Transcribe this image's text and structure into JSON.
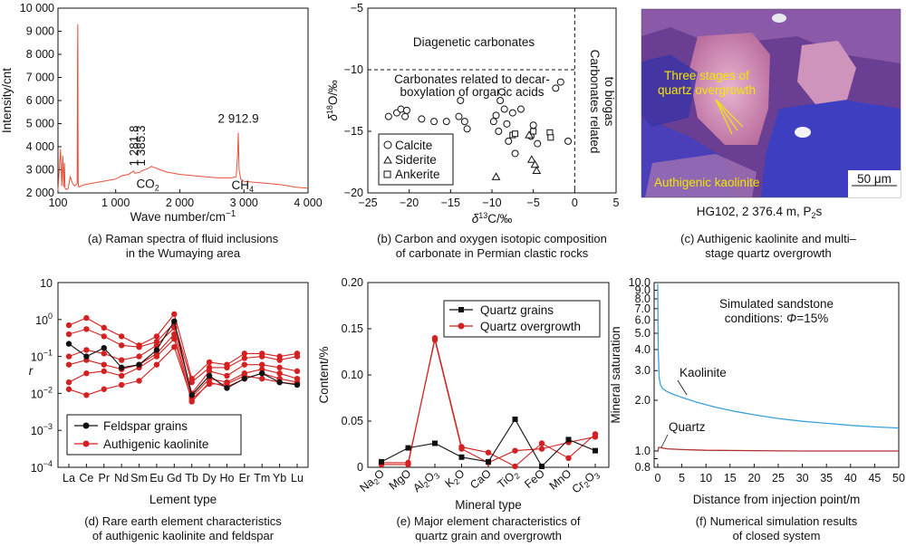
{
  "panels": {
    "a": {
      "caption_line1": "(a) Raman spectra of fluid inclusions",
      "caption_line2": "in the Wumaying area",
      "ylabel": "Intensity/cnt",
      "xlabel_main": "Wave number/cm",
      "xlabel_sup": "−1"
    },
    "b": {
      "caption_line1": "(b) Carbon and oxygen isotopic composition",
      "caption_line2": "of carbonate in Permian clastic rocks",
      "ylabel_delta": "δ",
      "ylabel_sup": "18",
      "ylabel_rest": "O/‰",
      "xlabel_delta": "δ",
      "xlabel_sup": "13",
      "xlabel_rest": "C/‰",
      "region_diagenetic": "Diagenetic carbonates",
      "region_decarb_1": "Carbonates related to decar-",
      "region_decarb_2": "boxylation of organic acids",
      "region_biogas_1": "Carbonates related",
      "region_biogas_2": "to biogas"
    },
    "c": {
      "label_three_1": "Three stages of",
      "label_three_2": "quartz overgrowth",
      "label_kaolinite": "Authigenic kaolinite",
      "scale_bar": "50 μm",
      "sample_main": "HG102, 2 376.4 m, P",
      "sample_sub": "2",
      "sample_tail": "s",
      "caption_line1": "(c) Authigenic kaolinite and multi–",
      "caption_line2": "stage quartz overgrowth"
    },
    "d": {
      "ylabel": "r",
      "xlabel": "Lement type",
      "caption_line1": "(d) Rare earth element characteristics",
      "caption_line2": "of authigenic kaolinite and feldspar"
    },
    "e": {
      "ylabel": "Content/%",
      "xlabel": "Mineral type",
      "caption_line1": "(e) Major element characteristics of",
      "caption_line2": "quartz grain and overgrowth"
    },
    "f": {
      "ylabel": "Mineral saturation",
      "xlabel": "Distance from injection point/m",
      "annot_line1": "Simulated sandstone",
      "annot_line2_prefix": "conditions: ",
      "annot_line2_phi": "Φ",
      "annot_line2_suffix": "=15%",
      "caption_line1": "(f) Numerical simulation results",
      "caption_line2": "of closed system"
    }
  },
  "colors": {
    "raman": "#e8503a",
    "red_series": "#d42020",
    "black_series": "#111111",
    "kaolinite_curve": "#3aa0d8",
    "quartz_curve": "#b03030",
    "photo_label": "#f2e600"
  },
  "chart_data": [
    {
      "id": "a",
      "type": "line",
      "xlim": [
        100,
        4000
      ],
      "ylim": [
        2000,
        10000
      ],
      "xticks": [
        100,
        1000,
        2000,
        3000,
        4000
      ],
      "xtick_labels": [
        "100",
        "1 000",
        "2 000",
        "3 000",
        "4 000"
      ],
      "yticks": [
        2000,
        3000,
        4000,
        5000,
        6000,
        7000,
        8000,
        9000,
        10000
      ],
      "ytick_labels": [
        "2 000",
        "3 000",
        "4 000",
        "5 000",
        "6 000",
        "7 000",
        "8 000",
        "9 000",
        "10 000"
      ],
      "series": [
        {
          "x": [
            100,
            140,
            160,
            175,
            190,
            200,
            210,
            230,
            260,
            290,
            330,
            360,
            380,
            400,
            405,
            410,
            412,
            415,
            420,
            430,
            460,
            500,
            600,
            700,
            800,
            900,
            1000,
            1100,
            1200,
            1281,
            1300,
            1385,
            1400,
            1500,
            1560,
            1600,
            1700,
            1800,
            1900,
            2000,
            2200,
            2400,
            2600,
            2800,
            2880,
            2900,
            2912,
            2925,
            2950,
            3000,
            3200,
            3400,
            3600,
            3800,
            4000
          ],
          "y": [
            2100,
            3900,
            2300,
            3600,
            2250,
            3300,
            2200,
            2150,
            2200,
            2700,
            2400,
            2300,
            2350,
            2400,
            8000,
            9300,
            5000,
            2500,
            2300,
            2250,
            2300,
            2350,
            2400,
            2450,
            2500,
            2550,
            2600,
            2750,
            2800,
            2950,
            2850,
            2900,
            2950,
            3050,
            3150,
            3100,
            3000,
            2900,
            2850,
            2800,
            2750,
            2700,
            2650,
            2650,
            2700,
            3600,
            4600,
            3000,
            2600,
            2500,
            2450,
            2400,
            2350,
            2250,
            2200
          ]
        }
      ],
      "annotations": [
        {
          "x": 1281.8,
          "y": 3000,
          "text": "1 281.8"
        },
        {
          "x": 1385.3,
          "y": 3000,
          "text": "1 385.3"
        },
        {
          "x": 2912.9,
          "y": 4800,
          "text": "2 912.9"
        },
        {
          "x": 1500,
          "y": 2600,
          "text": "CO",
          "sub": "2"
        },
        {
          "x": 2980,
          "y": 2550,
          "text": "CH",
          "sub": "4"
        }
      ]
    },
    {
      "id": "b",
      "type": "scatter",
      "xlim": [
        -25,
        5
      ],
      "ylim": [
        -20,
        -5
      ],
      "xticks": [
        -25,
        -20,
        -15,
        -10,
        -5,
        0,
        5
      ],
      "xtick_labels": [
        "−25",
        "−20",
        "−15",
        "−10",
        "−5",
        "0",
        "5"
      ],
      "yticks": [
        -20,
        -15,
        -10,
        -5
      ],
      "ytick_labels": [
        "−20",
        "−15",
        "−10",
        "−5"
      ],
      "series": [
        {
          "name": "Calcite",
          "marker": "circle",
          "points": [
            [
              -22.5,
              -13.8
            ],
            [
              -21.5,
              -13.5
            ],
            [
              -21,
              -13.2
            ],
            [
              -20.5,
              -13.8
            ],
            [
              -20.3,
              -13.3
            ],
            [
              -18.5,
              -14.0
            ],
            [
              -17,
              -14.2
            ],
            [
              -15.5,
              -14.2
            ],
            [
              -14,
              -13.8
            ],
            [
              -13.8,
              -12.5
            ],
            [
              -13.3,
              -14.2
            ],
            [
              -13,
              -14.8
            ],
            [
              -9.8,
              -14.2
            ],
            [
              -9.5,
              -13.7
            ],
            [
              -9.2,
              -15.0
            ],
            [
              -9,
              -12.5
            ],
            [
              -8.8,
              -11.8
            ],
            [
              -8.5,
              -13.2
            ],
            [
              -8.2,
              -14.4
            ],
            [
              -8,
              -15.8
            ],
            [
              -7.5,
              -13.5
            ],
            [
              -7.2,
              -16.8
            ],
            [
              -6.5,
              -13.2
            ],
            [
              -5.3,
              -15.4
            ],
            [
              -5,
              -14.5
            ],
            [
              -4.5,
              -16.0
            ],
            [
              -2.3,
              -11.5
            ],
            [
              -1.7,
              -11.0
            ],
            [
              -0.8,
              -15.8
            ]
          ]
        },
        {
          "name": "Siderite",
          "marker": "triangle",
          "points": [
            [
              -9.5,
              -18.7
            ],
            [
              -5.5,
              -15.3
            ],
            [
              -5.2,
              -17.3
            ],
            [
              -4.8,
              -17.7
            ],
            [
              -4.6,
              -18.2
            ]
          ]
        },
        {
          "name": "Ankerite",
          "marker": "square",
          "points": [
            [
              -7.5,
              -15.3
            ],
            [
              -7.2,
              -15.2
            ],
            [
              -5,
              -15.0
            ],
            [
              -3,
              -15.1
            ],
            [
              -2.9,
              -15.5
            ]
          ]
        }
      ],
      "reference_lines": {
        "horizontal_y": -10,
        "vertical_x": 0
      }
    },
    {
      "id": "d",
      "type": "line",
      "yscale": "log",
      "ylim": [
        0.0001,
        10
      ],
      "yticks": [
        0.0001,
        0.001,
        0.01,
        0.1,
        1,
        10
      ],
      "categories": [
        "La",
        "Ce",
        "Pr",
        "Nd",
        "Sm",
        "Eu",
        "Gd",
        "Tb",
        "Dy",
        "Ho",
        "Er",
        "Tm",
        "Yb",
        "Lu"
      ],
      "series": [
        {
          "name": "Feldspar grains",
          "color": "black",
          "values": [
            0.22,
            0.1,
            0.17,
            0.05,
            0.06,
            0.15,
            0.9,
            0.009,
            0.03,
            0.014,
            0.025,
            0.035,
            0.02,
            0.017
          ]
        },
        {
          "name": "Authigenic kaolinite",
          "color": "red",
          "values": [
            0.7,
            1.1,
            0.6,
            0.35,
            0.2,
            0.35,
            1.4,
            0.025,
            0.07,
            0.06,
            0.12,
            0.12,
            0.1,
            0.12
          ]
        },
        {
          "name": "Authigenic kaolinite",
          "color": "red",
          "values": [
            0.4,
            0.55,
            0.35,
            0.2,
            0.18,
            0.25,
            0.8,
            0.02,
            0.05,
            0.05,
            0.09,
            0.1,
            0.08,
            0.1
          ]
        },
        {
          "name": "Authigenic kaolinite",
          "color": "red",
          "values": [
            0.1,
            0.15,
            0.12,
            0.08,
            0.1,
            0.2,
            0.6,
            0.01,
            0.04,
            0.03,
            0.06,
            0.06,
            0.05,
            0.04
          ]
        },
        {
          "name": "Authigenic kaolinite",
          "color": "red",
          "values": [
            0.06,
            0.08,
            0.06,
            0.045,
            0.06,
            0.12,
            0.4,
            0.008,
            0.025,
            0.02,
            0.035,
            0.045,
            0.035,
            0.025
          ]
        },
        {
          "name": "Authigenic kaolinite",
          "color": "red",
          "values": [
            0.02,
            0.035,
            0.04,
            0.03,
            0.05,
            0.1,
            0.3,
            0.006,
            0.02,
            0.015,
            0.025,
            0.035,
            0.025,
            0.02
          ]
        },
        {
          "name": "Authigenic kaolinite",
          "color": "red",
          "values": [
            0.013,
            0.009,
            0.013,
            0.017,
            0.022,
            0.06,
            0.18,
            0.007,
            0.018,
            0.018,
            0.03,
            0.025,
            0.02,
            0.018
          ]
        }
      ],
      "legend": "bottom-left"
    },
    {
      "id": "e",
      "type": "line",
      "ylim": [
        0,
        0.2
      ],
      "yticks": [
        0,
        0.05,
        0.1,
        0.15,
        0.2
      ],
      "ytick_labels": [
        "0",
        "0.05",
        "0.10",
        "0.15",
        "0.20"
      ],
      "categories": [
        {
          "main": "Na",
          "sub": "2",
          "tail": "O"
        },
        {
          "main": "MgO"
        },
        {
          "main": "Al",
          "sub": "2",
          "tail": "O",
          "sub2": "3"
        },
        {
          "main": "K",
          "sub": "2",
          "tail": "O"
        },
        {
          "main": "CaO"
        },
        {
          "main": "TiO",
          "sub": "2"
        },
        {
          "main": "FeO"
        },
        {
          "main": "MnO"
        },
        {
          "main": "Cr",
          "sub": "2",
          "tail": "O",
          "sub2": "3"
        }
      ],
      "series": [
        {
          "name": "Quartz grains",
          "color": "black",
          "marker": "square",
          "values": [
            0.006,
            0.021,
            0.026,
            0.011,
            0.006,
            0.052,
            0.001,
            0.03,
            0.018
          ]
        },
        {
          "name": "Quartz overgrowth",
          "color": "red",
          "marker": "circle",
          "values": [
            0.003,
            0.003,
            0.14,
            0.022,
            0.016,
            0.001,
            0.026,
            0.01,
            0.036
          ]
        },
        {
          "name": "Quartz overgrowth",
          "color": "red",
          "marker": "circle",
          "values": [
            0.005,
            0.005,
            0.138,
            0.02,
            0.005,
            0.018,
            0.02,
            0.027,
            0.033
          ]
        }
      ],
      "legend": "top-right"
    },
    {
      "id": "f",
      "type": "line",
      "yscale": "log",
      "xlim": [
        0,
        50
      ],
      "ylim": [
        0.8,
        10
      ],
      "xticks": [
        0,
        5,
        10,
        15,
        20,
        25,
        30,
        35,
        40,
        45,
        50
      ],
      "yticks": [
        0.8,
        0.9,
        1.0,
        2.0,
        3.0,
        4.0,
        5.0,
        6.0,
        7.0,
        8.0,
        9.0,
        10.0
      ],
      "ytick_labels": [
        "0.8",
        "",
        "1.0",
        "2.0",
        "3.0",
        "4.0",
        "5.0",
        "6.0",
        "7.0",
        "8.0",
        "9.0",
        "10.0"
      ],
      "series": [
        {
          "name": "Kaolinite",
          "color": "blue",
          "x": [
            0,
            0.1,
            0.3,
            0.6,
            1,
            2,
            3,
            5,
            8,
            12,
            16,
            20,
            25,
            30,
            35,
            40,
            45,
            50
          ],
          "y": [
            9.8,
            4.0,
            2.7,
            2.45,
            2.35,
            2.25,
            2.18,
            2.08,
            1.95,
            1.82,
            1.72,
            1.64,
            1.56,
            1.5,
            1.46,
            1.42,
            1.39,
            1.37
          ]
        },
        {
          "name": "Quartz",
          "color": "red",
          "x": [
            0,
            0.2,
            0.5,
            1,
            2,
            5,
            10,
            20,
            30,
            40,
            50
          ],
          "y": [
            0.99,
            1.05,
            1.05,
            1.04,
            1.03,
            1.02,
            1.01,
            1.005,
            1.0,
            1.0,
            1.0
          ]
        }
      ]
    }
  ]
}
